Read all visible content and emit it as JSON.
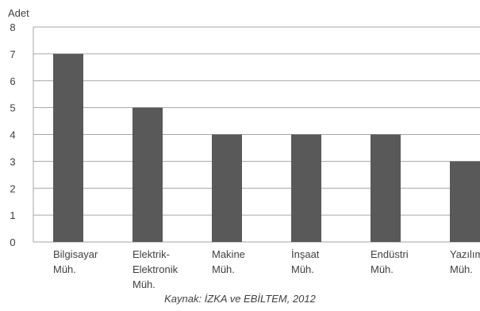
{
  "chart_data": {
    "type": "bar",
    "ylabel": "Adet",
    "ylim": [
      0,
      8
    ],
    "yticks": [
      0,
      1,
      2,
      3,
      4,
      5,
      6,
      7,
      8
    ],
    "grid": true,
    "categories": [
      [
        "Bilgisayar",
        "Müh."
      ],
      [
        "Elektrik-",
        "Elektronik",
        "Müh."
      ],
      [
        "Makine",
        "Müh."
      ],
      [
        "İnşaat",
        "Müh."
      ],
      [
        "Endüstri",
        "Müh."
      ],
      [
        "Yazılım",
        "Müh."
      ]
    ],
    "values": [
      7,
      5,
      4,
      4,
      4,
      3
    ],
    "colors": {
      "bar": "#595959",
      "grid": "#a6a6a6",
      "axis": "#a6a6a6",
      "text": "#404040"
    }
  },
  "source": "Kaynak: İZKA ve EBİLTEM, 2012"
}
